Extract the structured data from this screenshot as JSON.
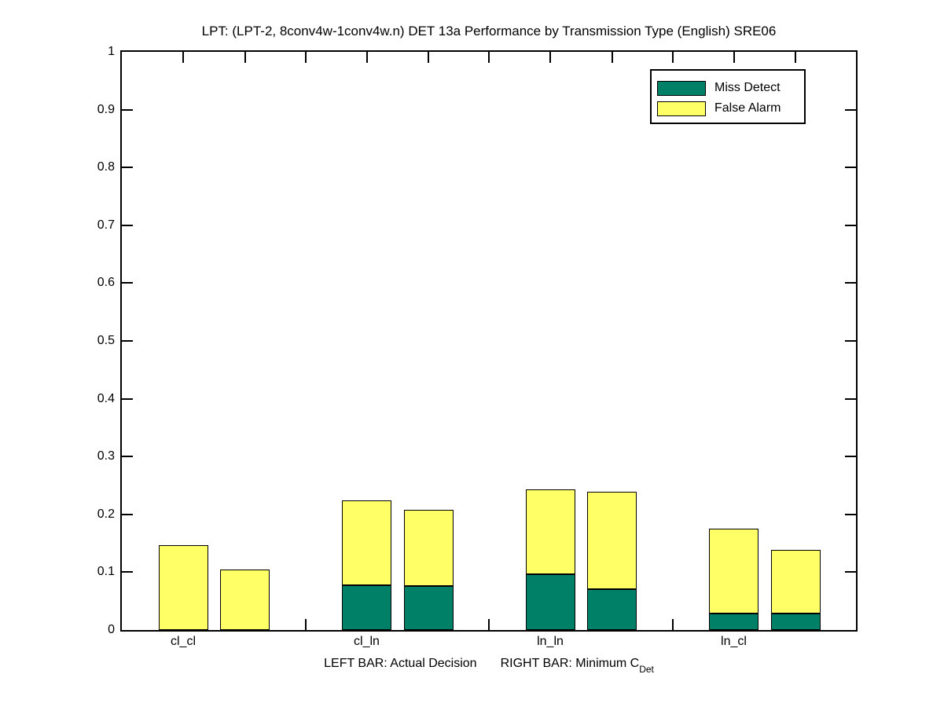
{
  "chart_data": {
    "type": "bar",
    "stacked": true,
    "title": "LPT: (LPT-2, 8conv4w-1conv4w.n) DET 13a Performance by Transmission Type (English) SRE06",
    "categories": [
      "cl_cl",
      "cl_ln",
      "ln_ln",
      "ln_cl"
    ],
    "xlabel": "LEFT BAR: Actual Decision    RIGHT BAR: Minimum C_Det",
    "xlabel_parts": {
      "left": "LEFT BAR: Actual Decision",
      "right_prefix": "RIGHT BAR: Minimum C",
      "right_subscript": "Det"
    },
    "ylim": [
      0,
      1
    ],
    "yticks": [
      0,
      0.1,
      0.2,
      0.3,
      0.4,
      0.5,
      0.6,
      0.7,
      0.8,
      0.9,
      1
    ],
    "ytick_labels": [
      "0",
      "0.1",
      "0.2",
      "0.3",
      "0.4",
      "0.5",
      "0.6",
      "0.7",
      "0.8",
      "0.9",
      "1"
    ],
    "grid": false,
    "legend_position": "top-right",
    "legend": [
      {
        "label": "Miss Detect",
        "color": "#008066"
      },
      {
        "label": "False Alarm",
        "color": "#FFFF66"
      }
    ],
    "series": [
      {
        "name": "LEFT BAR: Actual Decision",
        "segments": {
          "miss_detect": [
            0.0,
            0.077,
            0.097,
            0.029
          ],
          "false_alarm": [
            0.147,
            0.147,
            0.146,
            0.146
          ]
        },
        "totals": [
          0.147,
          0.224,
          0.243,
          0.175
        ]
      },
      {
        "name": "RIGHT BAR: Minimum C_Det",
        "segments": {
          "miss_detect": [
            0.0,
            0.076,
            0.07,
            0.029
          ],
          "false_alarm": [
            0.105,
            0.132,
            0.169,
            0.109
          ]
        },
        "totals": [
          0.105,
          0.208,
          0.239,
          0.138
        ]
      }
    ],
    "colors": {
      "miss_detect": "#008066",
      "false_alarm": "#FFFF66",
      "axis": "#000000",
      "background": "#FFFFFF"
    }
  }
}
